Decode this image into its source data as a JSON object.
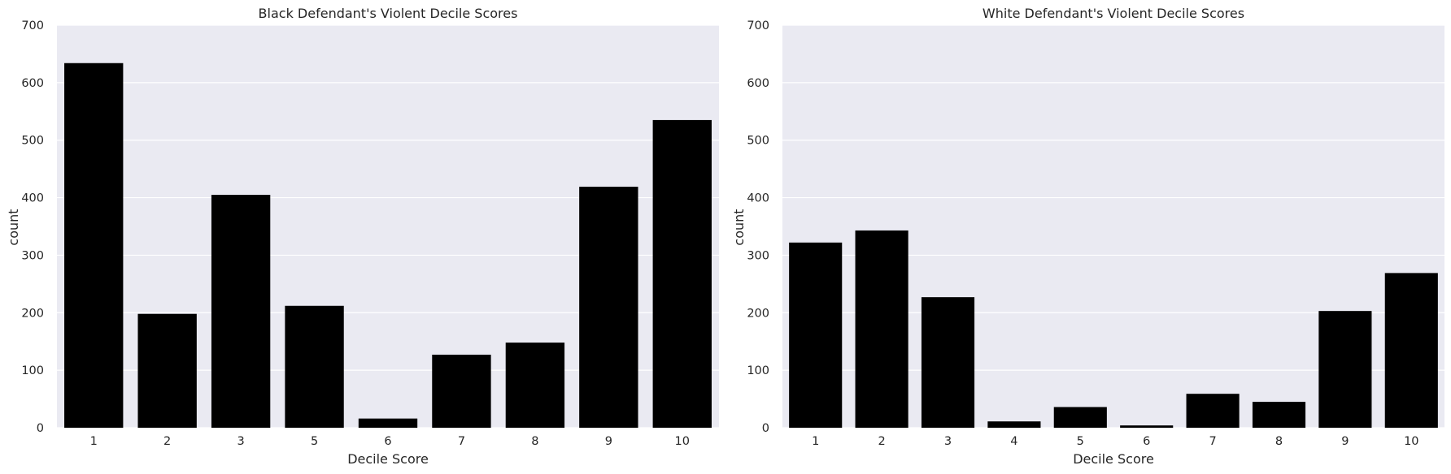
{
  "chart_data": [
    {
      "type": "bar",
      "title": "Black Defendant's Violent Decile Scores",
      "xlabel": "Decile Score",
      "ylabel": "count",
      "categories": [
        "1",
        "2",
        "3",
        "5",
        "6",
        "7",
        "8",
        "9",
        "10"
      ],
      "values": [
        634,
        198,
        405,
        212,
        16,
        127,
        148,
        419,
        535
      ],
      "ylim": [
        0,
        700
      ],
      "yticks": [
        "0",
        "100",
        "200",
        "300",
        "400",
        "500",
        "600",
        "700"
      ],
      "grid": true,
      "bar_color": "#000000",
      "background_color": "#EAEAF2"
    },
    {
      "type": "bar",
      "title": "White Defendant's Violent Decile Scores",
      "xlabel": "Decile Score",
      "ylabel": "count",
      "categories": [
        "1",
        "2",
        "3",
        "4",
        "5",
        "6",
        "7",
        "8",
        "9",
        "10"
      ],
      "values": [
        322,
        343,
        227,
        11,
        36,
        4,
        59,
        45,
        203,
        269
      ],
      "ylim": [
        0,
        700
      ],
      "yticks": [
        "0",
        "100",
        "200",
        "300",
        "400",
        "500",
        "600",
        "700"
      ],
      "grid": true,
      "bar_color": "#000000",
      "background_color": "#EAEAF2"
    }
  ]
}
